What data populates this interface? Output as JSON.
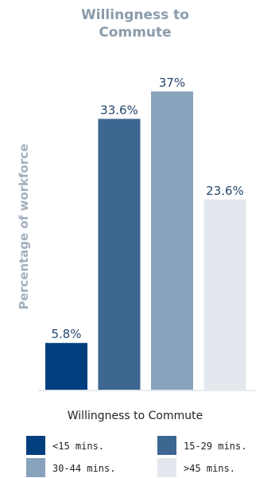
{
  "chart_data": {
    "type": "bar",
    "title": "Willingness to Commute",
    "title_lines": [
      "Willingness to",
      "Commute"
    ],
    "xlabel": "Willingness to Commute",
    "ylabel": "Percentage of workforce",
    "categories": [
      "<15 mins.",
      "15-29 mins.",
      "30-44 mins.",
      ">45 mins."
    ],
    "values": [
      5.8,
      33.6,
      37,
      23.6
    ],
    "value_labels": [
      "5.8%",
      "33.6%",
      "37%",
      "23.6%"
    ],
    "colors": [
      "#003f7d",
      "#3d6791",
      "#8aa3bc",
      "#e3e8ee"
    ],
    "ylim": [
      0,
      37
    ],
    "grid": false,
    "legend": {
      "placement": "bottom",
      "entries": [
        "<15 mins.",
        "15-29 mins.",
        "30-44 mins.",
        ">45 mins."
      ]
    }
  }
}
